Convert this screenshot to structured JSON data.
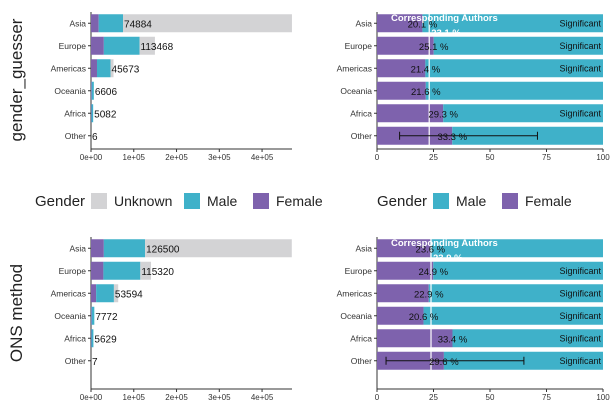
{
  "colors": {
    "unknown": "#d3d3d5",
    "male": "#3fb1c9",
    "female": "#7e62ad",
    "corr_line": "#ffffff"
  },
  "row_labels": [
    "gender_guesser",
    "ONS method"
  ],
  "legends": [
    {
      "title": "Gender",
      "items": [
        {
          "label": "Unknown",
          "key": "unknown"
        },
        {
          "label": "Male",
          "key": "male"
        },
        {
          "label": "Female",
          "key": "female"
        }
      ]
    },
    {
      "title": "Gender",
      "items": [
        {
          "label": "Male",
          "key": "male"
        },
        {
          "label": "Female",
          "key": "female"
        }
      ]
    }
  ],
  "chart_data": [
    {
      "type": "bar",
      "orientation": "horizontal",
      "stacked": true,
      "row": "gender_guesser",
      "panel": "left",
      "categories": [
        "Asia",
        "Europe",
        "Americas",
        "Oceania",
        "Africa",
        "Other"
      ],
      "xlim": [
        0,
        470000
      ],
      "ticks": [
        "0e+00",
        "1e+05",
        "2e+05",
        "3e+05",
        "4e+05"
      ],
      "series": [
        {
          "name": "Female",
          "key": "female",
          "values": [
            18000,
            30000,
            14000,
            1500,
            1000,
            2
          ]
        },
        {
          "name": "Male",
          "key": "male",
          "values": [
            56884,
            83468,
            31673,
            5106,
            4082,
            4
          ]
        },
        {
          "name": "Unknown",
          "key": "unknown",
          "values": [
            395000,
            36000,
            7000,
            200,
            200,
            0
          ]
        }
      ],
      "labels": [
        "74884",
        "113468",
        "45673",
        "6606",
        "5082",
        "6"
      ]
    },
    {
      "type": "bar",
      "orientation": "horizontal",
      "stacked": true,
      "row": "gender_guesser",
      "panel": "right",
      "categories": [
        "Asia",
        "Europe",
        "Americas",
        "Oceania",
        "Africa",
        "Other"
      ],
      "xlim": [
        0,
        100
      ],
      "ticks": [
        "0",
        "25",
        "50",
        "75",
        "100"
      ],
      "female_pct": [
        20.1,
        25.1,
        21.4,
        21.6,
        29.3,
        33.3
      ],
      "pct_labels": [
        "20.1 %",
        "25.1 %",
        "21.4 %",
        "21.6 %",
        "29.3 %",
        "33.3 %"
      ],
      "significant": [
        "Significant",
        "Significant",
        "Significant",
        "",
        "Significant",
        ""
      ],
      "corresponding_authors": {
        "label": "Corresponding Authors",
        "value": 23.1,
        "value_label": "23.1 %"
      },
      "error_bar": {
        "category": "Other",
        "low": 10,
        "high": 71
      }
    },
    {
      "type": "bar",
      "orientation": "horizontal",
      "stacked": true,
      "row": "ONS method",
      "panel": "left",
      "categories": [
        "Asia",
        "Europe",
        "Americas",
        "Oceania",
        "Africa",
        "Other"
      ],
      "xlim": [
        0,
        470000
      ],
      "ticks": [
        "0e+00",
        "1e+05",
        "2e+05",
        "3e+05",
        "4e+05"
      ],
      "series": [
        {
          "name": "Female",
          "key": "female",
          "values": [
            30000,
            29000,
            12000,
            1500,
            1000,
            2
          ]
        },
        {
          "name": "Male",
          "key": "male",
          "values": [
            96500,
            86320,
            41594,
            6272,
            4629,
            5
          ]
        },
        {
          "name": "Unknown",
          "key": "unknown",
          "values": [
            343000,
            25000,
            10000,
            200,
            200,
            0
          ]
        }
      ],
      "labels": [
        "126500",
        "115320",
        "53594",
        "7772",
        "5629",
        "7"
      ]
    },
    {
      "type": "bar",
      "orientation": "horizontal",
      "stacked": true,
      "row": "ONS method",
      "panel": "right",
      "categories": [
        "Asia",
        "Europe",
        "Americas",
        "Oceania",
        "Africa",
        "Other"
      ],
      "xlim": [
        0,
        100
      ],
      "ticks": [
        "0",
        "25",
        "50",
        "75",
        "100"
      ],
      "female_pct": [
        23.6,
        24.9,
        22.9,
        20.6,
        33.4,
        29.6
      ],
      "pct_labels": [
        "23.6 %",
        "24.9 %",
        "22.9 %",
        "20.6 %",
        "33.4 %",
        "29.6 %"
      ],
      "significant": [
        "",
        "Significant",
        "Significant",
        "Significant",
        "Significant",
        "Significant"
      ],
      "corresponding_authors": {
        "label": "Corresponding Authors",
        "value": 23.9,
        "value_label": "23.9 %"
      },
      "error_bar": {
        "category": "Other",
        "low": 4,
        "high": 65
      }
    }
  ]
}
